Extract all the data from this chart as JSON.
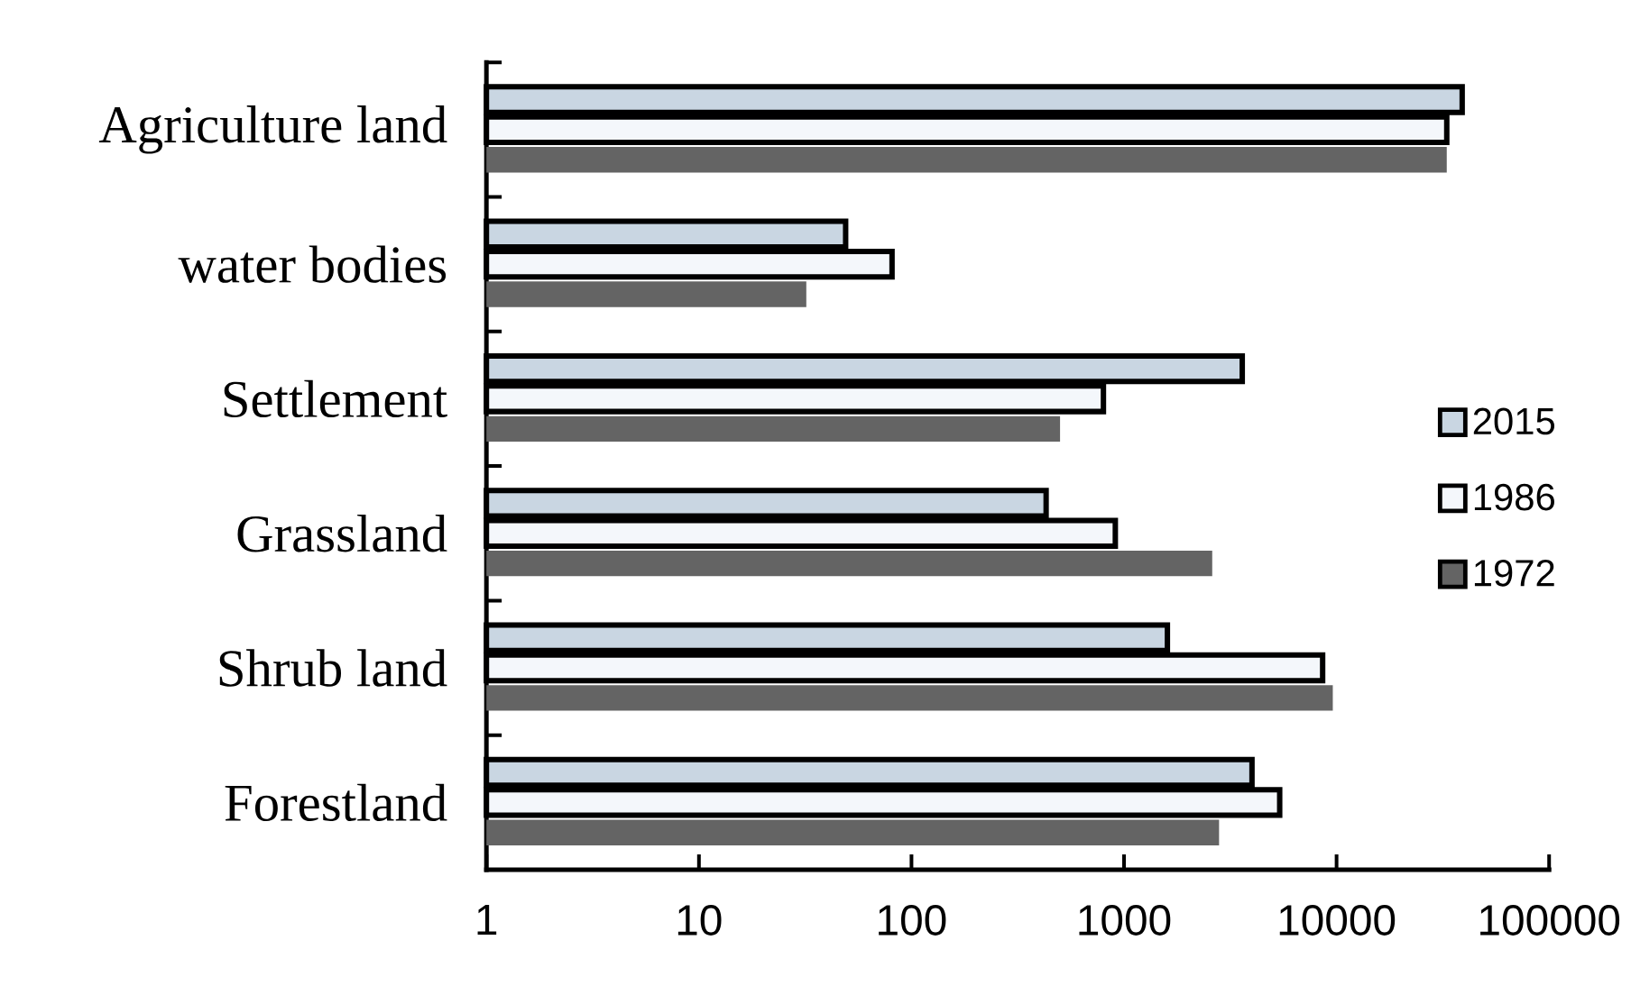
{
  "chart_data": {
    "type": "bar",
    "orientation": "horizontal",
    "log": "x",
    "categories": [
      "Agriculture land",
      "water bodies",
      "Settlement",
      "Grassland",
      "Shrub land",
      "Forestland"
    ],
    "series": [
      {
        "name": "2015",
        "color": "#c9d6e2",
        "values": [
          39000,
          49,
          3600,
          430,
          1600,
          4000
        ]
      },
      {
        "name": "1986",
        "color": "#f4f7fb",
        "values": [
          33000,
          81,
          800,
          910,
          8600,
          5400
        ]
      },
      {
        "name": "1972",
        "color": "#646464",
        "values": [
          33000,
          32,
          500,
          2600,
          9600,
          2800
        ]
      }
    ],
    "xlim": [
      1,
      100000
    ],
    "xticks": [
      1,
      10,
      100,
      1000,
      10000,
      100000
    ],
    "legend": "right",
    "grid": false
  }
}
